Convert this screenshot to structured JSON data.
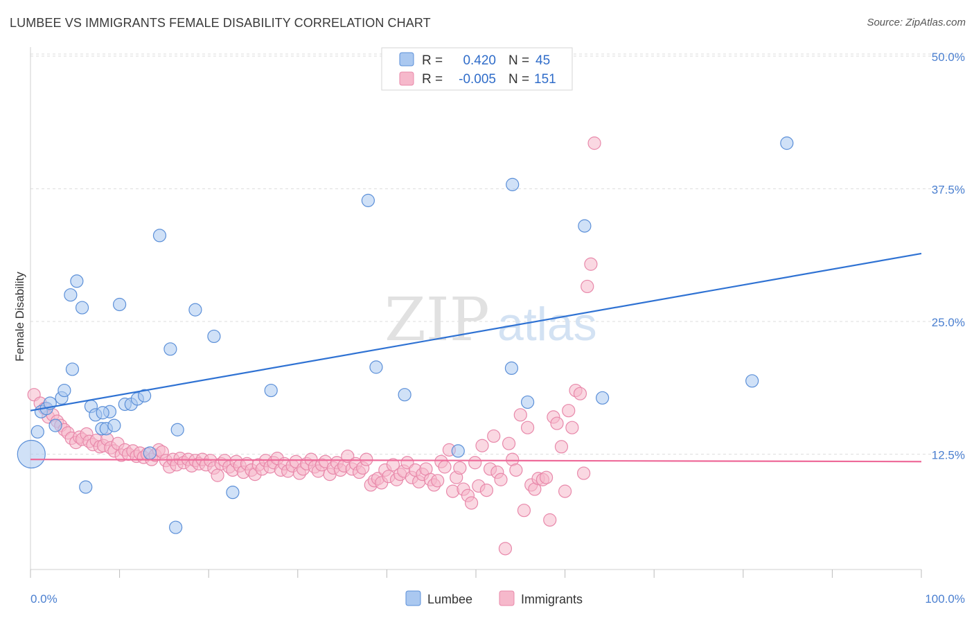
{
  "title": "LUMBEE VS IMMIGRANTS FEMALE DISABILITY CORRELATION CHART",
  "source": "Source: ZipAtlas.com",
  "watermark": {
    "zip": "ZIP",
    "atlas": "atlas"
  },
  "legend": {
    "rows": [
      {
        "r_label": "R =",
        "r_value": "0.420",
        "n_label": "N =",
        "n_value": "45"
      },
      {
        "r_label": "R =",
        "r_value": "-0.005",
        "n_label": "N =",
        "n_value": "151"
      }
    ]
  },
  "bottom_legend": [
    "Lumbee",
    "Immigrants"
  ],
  "colors": {
    "lumbee_fill": "#aac8f0",
    "lumbee_stroke": "#5b8fd8",
    "lumbee_line": "#2f72d3",
    "immigrants_fill": "#f6b8cb",
    "immigrants_stroke": "#e888aa",
    "immigrants_line": "#ee6a99",
    "tick_text": "#4a7fd0",
    "grid": "#dddddd"
  },
  "chart_data": {
    "type": "scatter",
    "title": "LUMBEE VS IMMIGRANTS FEMALE DISABILITY CORRELATION CHART",
    "xlabel": "",
    "ylabel": "Female Disability",
    "xlim": [
      0,
      100
    ],
    "ylim": [
      0,
      50
    ],
    "x_tick_labels": [
      "0.0%",
      "100.0%"
    ],
    "y_ticks": [
      12.5,
      25.0,
      37.5,
      50.0
    ],
    "y_tick_labels": [
      "12.5%",
      "25.0%",
      "37.5%",
      "50.0%"
    ],
    "grid": true,
    "legend_position": "top-center",
    "series": [
      {
        "name": "Lumbee",
        "r": 0.42,
        "n": 45,
        "trend": {
          "x": [
            0,
            100
          ],
          "y": [
            16.6,
            31.4
          ]
        },
        "points": [
          [
            0.1,
            12.5
          ],
          [
            0.8,
            14.6
          ],
          [
            1.2,
            16.5
          ],
          [
            1.8,
            16.8
          ],
          [
            2.2,
            17.3
          ],
          [
            2.8,
            15.2
          ],
          [
            3.5,
            17.8
          ],
          [
            3.8,
            18.5
          ],
          [
            4.5,
            27.5
          ],
          [
            4.7,
            20.5
          ],
          [
            5.2,
            28.8
          ],
          [
            5.8,
            26.3
          ],
          [
            6.2,
            9.4
          ],
          [
            6.8,
            17.0
          ],
          [
            7.3,
            16.2
          ],
          [
            8.0,
            14.9
          ],
          [
            8.5,
            14.9
          ],
          [
            8.9,
            16.5
          ],
          [
            9.4,
            15.2
          ],
          [
            10.0,
            26.6
          ],
          [
            10.6,
            17.2
          ],
          [
            11.3,
            17.2
          ],
          [
            12.0,
            17.7
          ],
          [
            12.8,
            18.0
          ],
          [
            13.4,
            12.6
          ],
          [
            14.5,
            33.1
          ],
          [
            15.7,
            22.4
          ],
          [
            16.3,
            5.6
          ],
          [
            16.5,
            14.8
          ],
          [
            18.5,
            26.1
          ],
          [
            20.6,
            23.6
          ],
          [
            22.7,
            8.9
          ],
          [
            27.0,
            18.5
          ],
          [
            37.9,
            36.4
          ],
          [
            38.8,
            20.7
          ],
          [
            42.0,
            18.1
          ],
          [
            48.0,
            12.8
          ],
          [
            54.0,
            20.6
          ],
          [
            54.1,
            37.9
          ],
          [
            55.8,
            17.4
          ],
          [
            62.2,
            34.0
          ],
          [
            64.2,
            17.8
          ],
          [
            81.0,
            19.4
          ],
          [
            84.9,
            41.8
          ],
          [
            8.1,
            16.4
          ]
        ]
      },
      {
        "name": "Immigrants",
        "r": -0.005,
        "n": 151,
        "trend": {
          "x": [
            0,
            100
          ],
          "y": [
            12.0,
            11.8
          ]
        },
        "points": [
          [
            0.4,
            18.1
          ],
          [
            1.1,
            17.3
          ],
          [
            1.6,
            16.8
          ],
          [
            2.0,
            16.0
          ],
          [
            2.5,
            16.2
          ],
          [
            3.0,
            15.6
          ],
          [
            3.4,
            15.2
          ],
          [
            3.8,
            14.8
          ],
          [
            4.2,
            14.5
          ],
          [
            4.6,
            14.0
          ],
          [
            5.1,
            13.6
          ],
          [
            5.5,
            14.1
          ],
          [
            5.8,
            13.9
          ],
          [
            6.3,
            14.4
          ],
          [
            6.6,
            13.7
          ],
          [
            7.0,
            13.4
          ],
          [
            7.4,
            13.8
          ],
          [
            7.8,
            13.2
          ],
          [
            8.2,
            13.3
          ],
          [
            8.6,
            13.9
          ],
          [
            9.0,
            13.1
          ],
          [
            9.4,
            12.8
          ],
          [
            9.8,
            13.5
          ],
          [
            10.2,
            12.4
          ],
          [
            10.6,
            12.9
          ],
          [
            11.0,
            12.5
          ],
          [
            11.5,
            12.8
          ],
          [
            11.9,
            12.3
          ],
          [
            12.3,
            12.6
          ],
          [
            12.7,
            12.2
          ],
          [
            13.1,
            12.5
          ],
          [
            13.6,
            12.0
          ],
          [
            14.0,
            12.4
          ],
          [
            14.4,
            12.9
          ],
          [
            14.8,
            12.7
          ],
          [
            15.2,
            11.9
          ],
          [
            15.6,
            11.3
          ],
          [
            16.0,
            12.0
          ],
          [
            16.4,
            11.5
          ],
          [
            16.8,
            12.1
          ],
          [
            17.2,
            11.7
          ],
          [
            17.7,
            12.0
          ],
          [
            18.1,
            11.4
          ],
          [
            18.5,
            11.9
          ],
          [
            18.9,
            11.6
          ],
          [
            19.3,
            12.0
          ],
          [
            19.7,
            11.5
          ],
          [
            20.2,
            11.9
          ],
          [
            20.6,
            11.2
          ],
          [
            21.0,
            10.5
          ],
          [
            21.4,
            11.6
          ],
          [
            21.8,
            11.9
          ],
          [
            22.3,
            11.3
          ],
          [
            22.7,
            11.0
          ],
          [
            23.1,
            11.8
          ],
          [
            23.5,
            11.4
          ],
          [
            23.9,
            10.8
          ],
          [
            24.3,
            11.6
          ],
          [
            24.8,
            11.0
          ],
          [
            25.2,
            10.6
          ],
          [
            25.6,
            11.5
          ],
          [
            26.0,
            11.1
          ],
          [
            26.4,
            11.9
          ],
          [
            26.9,
            11.3
          ],
          [
            27.3,
            11.7
          ],
          [
            27.7,
            12.1
          ],
          [
            28.1,
            11.0
          ],
          [
            28.5,
            11.6
          ],
          [
            28.9,
            10.9
          ],
          [
            29.4,
            11.4
          ],
          [
            29.8,
            11.8
          ],
          [
            30.2,
            10.7
          ],
          [
            30.6,
            11.1
          ],
          [
            31.0,
            11.6
          ],
          [
            31.5,
            12.0
          ],
          [
            31.9,
            11.3
          ],
          [
            32.3,
            10.9
          ],
          [
            32.7,
            11.5
          ],
          [
            33.1,
            11.8
          ],
          [
            33.6,
            10.6
          ],
          [
            34.0,
            11.2
          ],
          [
            34.4,
            11.7
          ],
          [
            34.8,
            11.0
          ],
          [
            35.2,
            11.4
          ],
          [
            35.6,
            12.3
          ],
          [
            36.1,
            11.1
          ],
          [
            36.5,
            11.6
          ],
          [
            36.9,
            10.8
          ],
          [
            37.3,
            11.2
          ],
          [
            37.7,
            12.0
          ],
          [
            38.2,
            9.6
          ],
          [
            38.6,
            10.0
          ],
          [
            39.0,
            10.2
          ],
          [
            39.4,
            9.8
          ],
          [
            39.8,
            11.0
          ],
          [
            40.2,
            10.4
          ],
          [
            40.7,
            11.5
          ],
          [
            41.1,
            10.1
          ],
          [
            41.5,
            10.6
          ],
          [
            41.9,
            10.9
          ],
          [
            42.3,
            11.7
          ],
          [
            42.8,
            10.3
          ],
          [
            43.2,
            11.0
          ],
          [
            43.6,
            9.9
          ],
          [
            44.0,
            10.6
          ],
          [
            44.4,
            11.1
          ],
          [
            44.9,
            10.1
          ],
          [
            45.3,
            9.6
          ],
          [
            45.7,
            10.0
          ],
          [
            46.1,
            11.8
          ],
          [
            46.5,
            11.3
          ],
          [
            47.0,
            12.9
          ],
          [
            47.4,
            9.0
          ],
          [
            47.8,
            10.3
          ],
          [
            48.2,
            11.2
          ],
          [
            48.6,
            9.2
          ],
          [
            49.1,
            8.6
          ],
          [
            49.5,
            7.9
          ],
          [
            49.9,
            11.7
          ],
          [
            50.3,
            9.5
          ],
          [
            50.7,
            13.3
          ],
          [
            51.2,
            9.1
          ],
          [
            51.6,
            11.1
          ],
          [
            52.0,
            14.2
          ],
          [
            52.4,
            10.8
          ],
          [
            52.8,
            10.1
          ],
          [
            53.3,
            3.6
          ],
          [
            53.7,
            13.5
          ],
          [
            54.1,
            12.0
          ],
          [
            54.5,
            11.0
          ],
          [
            55.0,
            16.2
          ],
          [
            55.4,
            7.2
          ],
          [
            55.8,
            15.0
          ],
          [
            56.2,
            9.6
          ],
          [
            56.6,
            9.2
          ],
          [
            57.0,
            10.2
          ],
          [
            57.5,
            10.1
          ],
          [
            57.9,
            10.3
          ],
          [
            58.3,
            6.3
          ],
          [
            58.7,
            16.0
          ],
          [
            59.1,
            15.4
          ],
          [
            59.6,
            13.2
          ],
          [
            60.0,
            9.0
          ],
          [
            60.4,
            16.6
          ],
          [
            60.8,
            15.0
          ],
          [
            61.2,
            18.5
          ],
          [
            61.7,
            18.2
          ],
          [
            62.1,
            10.7
          ],
          [
            62.5,
            28.3
          ],
          [
            62.9,
            30.4
          ],
          [
            63.3,
            41.8
          ]
        ]
      }
    ]
  }
}
